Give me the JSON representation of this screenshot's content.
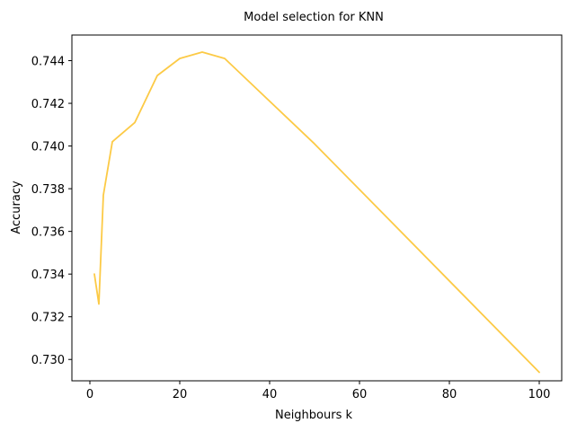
{
  "chart_data": {
    "type": "line",
    "title": "Model selection for KNN",
    "xlabel": "Neighbours k",
    "ylabel": "Accuracy",
    "xlim": [
      -4,
      105
    ],
    "ylim": [
      0.729,
      0.7452
    ],
    "xticks": [
      0,
      20,
      40,
      60,
      80,
      100
    ],
    "xtick_labels": [
      "0",
      "20",
      "40",
      "60",
      "80",
      "100"
    ],
    "yticks": [
      0.73,
      0.732,
      0.734,
      0.736,
      0.738,
      0.74,
      0.742,
      0.744
    ],
    "ytick_labels": [
      "0.730",
      "0.732",
      "0.734",
      "0.736",
      "0.738",
      "0.740",
      "0.742",
      "0.744"
    ],
    "grid": false,
    "series": [
      {
        "color": "#fcca46",
        "x": [
          1,
          2,
          3,
          5,
          10,
          15,
          20,
          25,
          30,
          50,
          100
        ],
        "y": [
          0.734,
          0.7326,
          0.7377,
          0.7402,
          0.7411,
          0.7433,
          0.7441,
          0.7444,
          0.7441,
          0.7401,
          0.7294
        ]
      }
    ]
  }
}
